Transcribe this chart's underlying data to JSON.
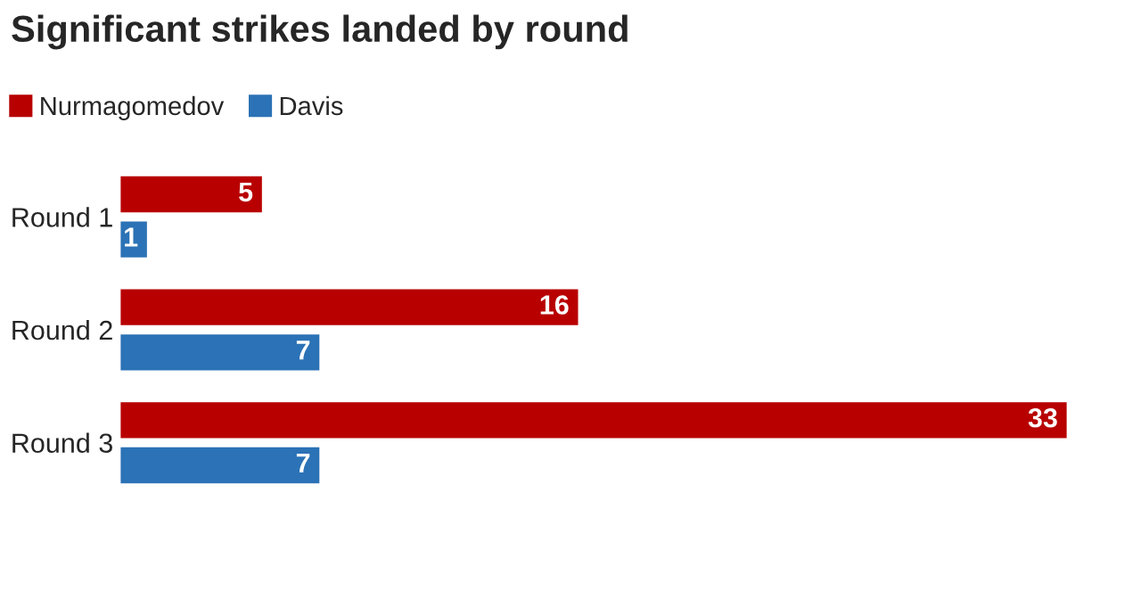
{
  "chart_data": {
    "type": "bar",
    "orientation": "horizontal",
    "title": "Significant strikes landed by round",
    "categories": [
      "Round 1",
      "Round 2",
      "Round 3"
    ],
    "series": [
      {
        "name": "Nurmagomedov",
        "color": "#b80000",
        "values": [
          5,
          16,
          33
        ]
      },
      {
        "name": "Davis",
        "color": "#2b72b6",
        "values": [
          1,
          7,
          7
        ]
      }
    ],
    "data_labels": true,
    "legend": "top left",
    "grid": false
  }
}
